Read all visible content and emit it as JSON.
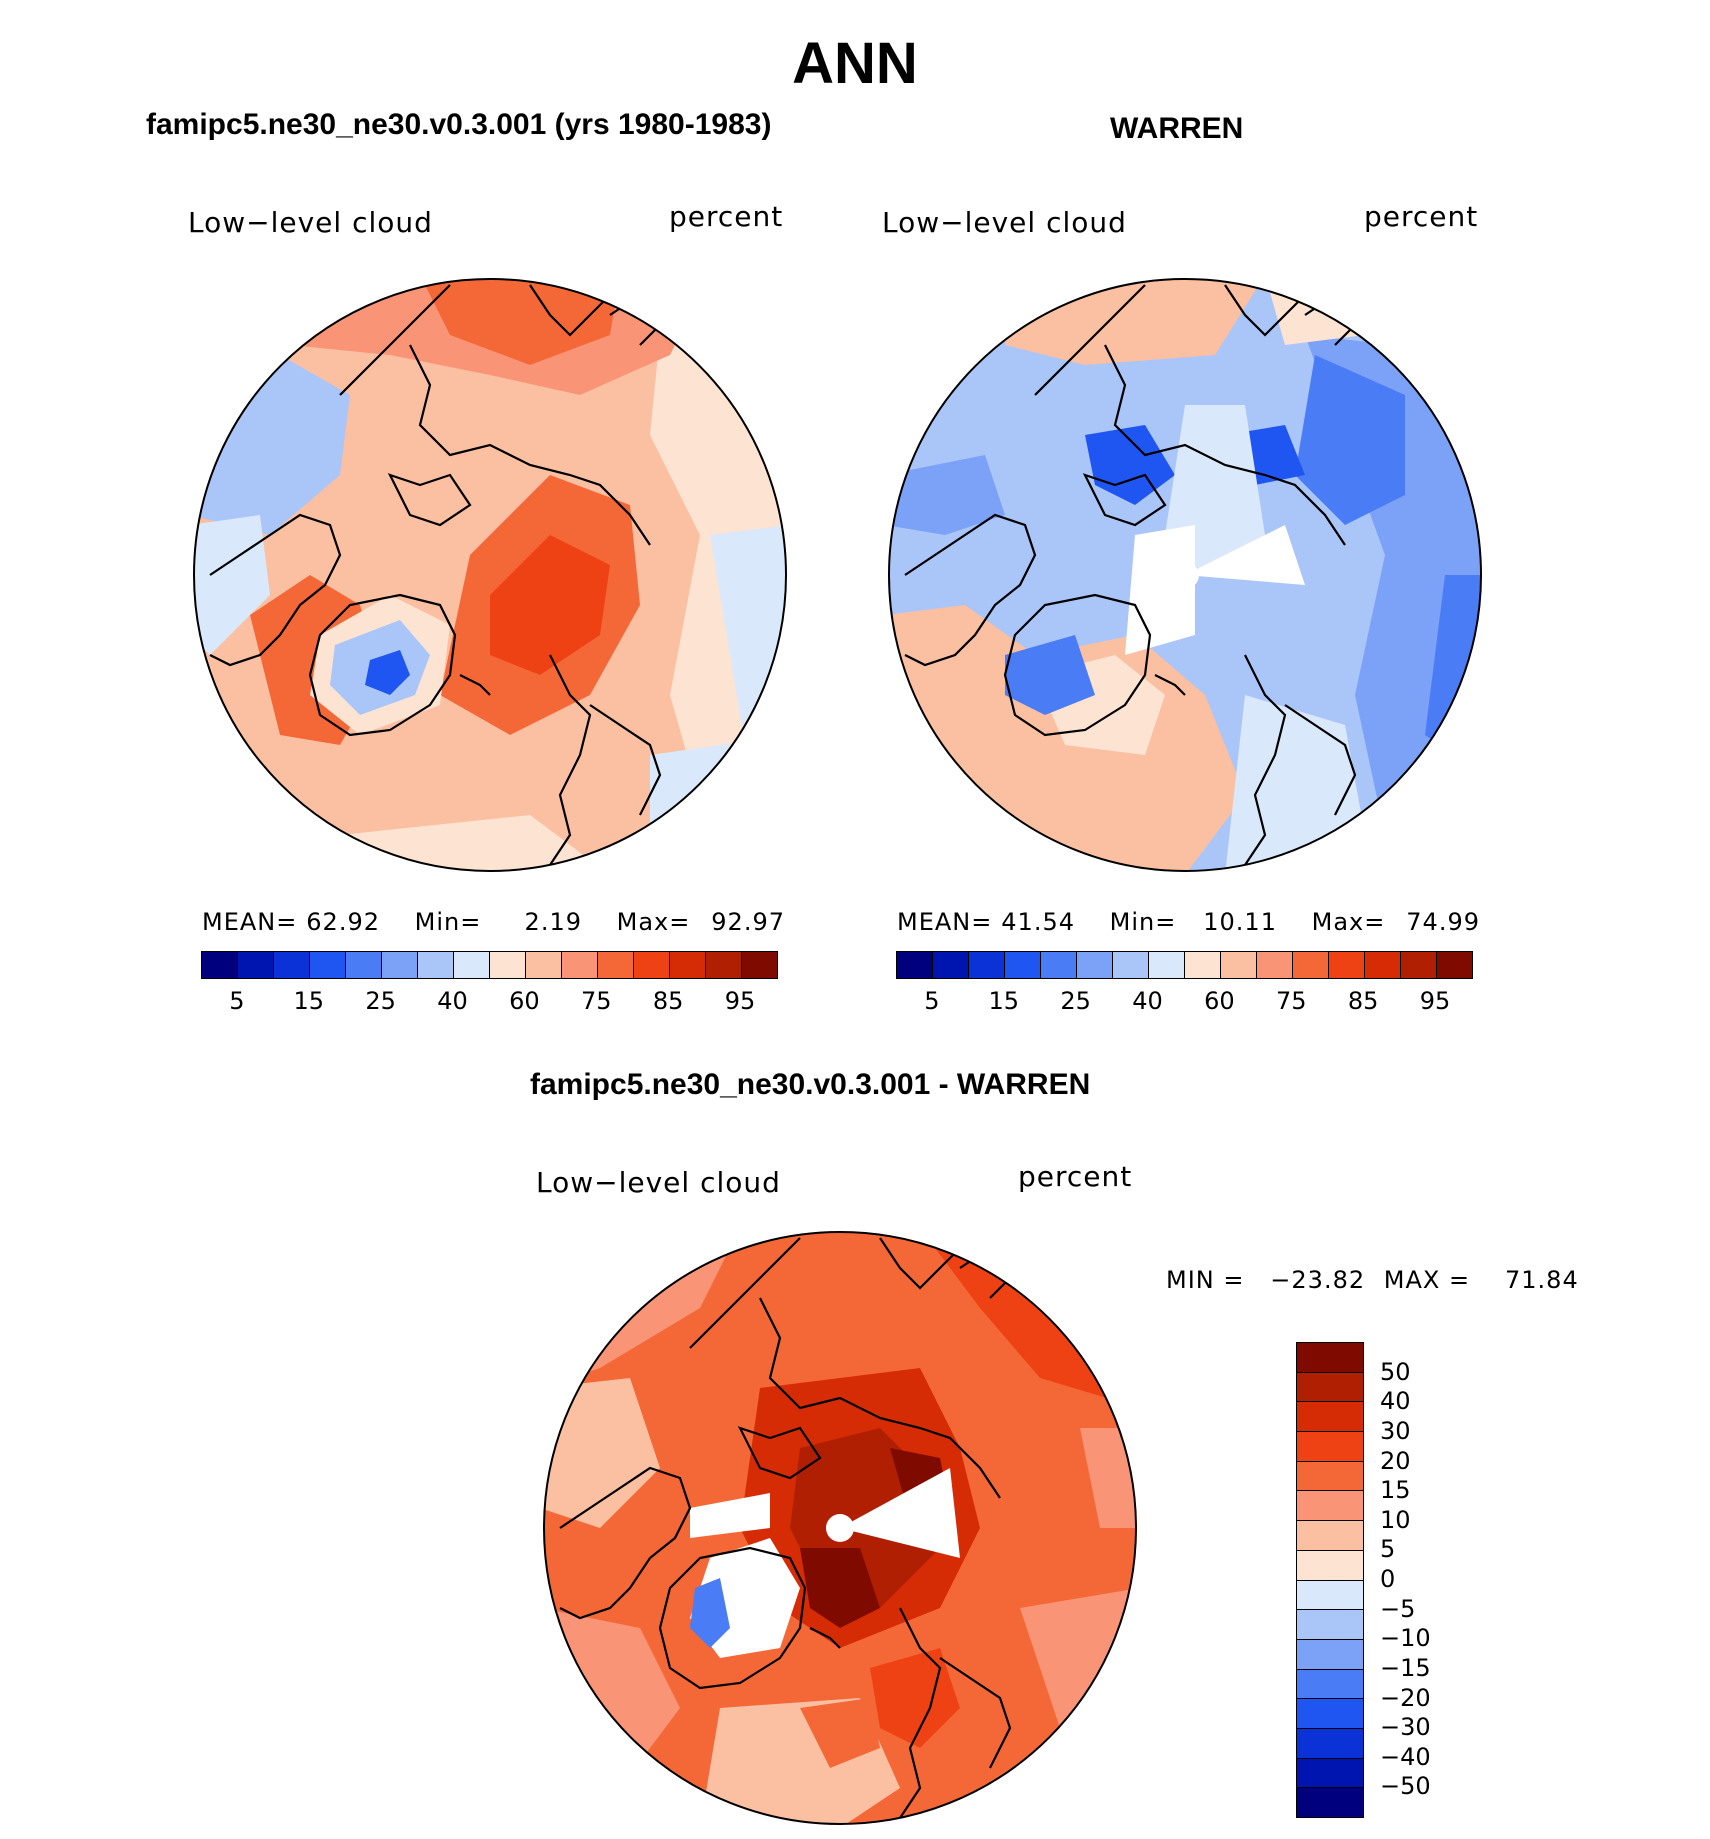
{
  "figure": {
    "title": "ANN",
    "panels": [
      {
        "id": "model",
        "title": "famipc5.ne30_ne30.v0.3.001 (yrs 1980-1983)",
        "variable": "Low−level cloud",
        "units": "percent",
        "stats": {
          "mean_label": "MEAN=",
          "mean": "62.92",
          "min_label": "Min=",
          "min": "2.19",
          "max_label": "Max=",
          "max": "92.97"
        },
        "colorbar_ticks": [
          "5",
          "15",
          "25",
          "40",
          "60",
          "75",
          "85",
          "95"
        ]
      },
      {
        "id": "obs",
        "title": "WARREN",
        "variable": "Low−level cloud",
        "units": "percent",
        "stats": {
          "mean_label": "MEAN=",
          "mean": "41.54",
          "min_label": "Min=",
          "min": "10.11",
          "max_label": "Max=",
          "max": "74.99"
        },
        "colorbar_ticks": [
          "5",
          "15",
          "25",
          "40",
          "60",
          "75",
          "85",
          "95"
        ]
      },
      {
        "id": "diff",
        "title": "famipc5.ne30_ne30.v0.3.001 - WARREN",
        "variable": "Low−level cloud",
        "units": "percent",
        "stats": {
          "min_label": "MIN =",
          "min": "−23.82",
          "max_label": "MAX =",
          "max": "71.84"
        },
        "colorbar_ticks": [
          "50",
          "40",
          "30",
          "20",
          "15",
          "10",
          "5",
          "0",
          "−5",
          "−10",
          "−15",
          "−20",
          "−30",
          "−40",
          "−50"
        ]
      }
    ],
    "abs_palette": [
      "#00007f",
      "#0015b0",
      "#0a32d6",
      "#1f55f0",
      "#4a7cf6",
      "#7ca2f8",
      "#aac5f8",
      "#d9e9fb",
      "#fde3d2",
      "#fbc0a2",
      "#f99576",
      "#f46838",
      "#ef4214",
      "#d62c05",
      "#b01f02",
      "#7e0a00"
    ],
    "diff_palette": [
      "#7e0a00",
      "#b01f02",
      "#d62c05",
      "#ef4214",
      "#f46838",
      "#f99576",
      "#fbc0a2",
      "#fde3d2",
      "#d9e9fb",
      "#aac5f8",
      "#7ca2f8",
      "#4a7cf6",
      "#1f55f0",
      "#0a32d6",
      "#0015b0",
      "#00007f"
    ]
  }
}
